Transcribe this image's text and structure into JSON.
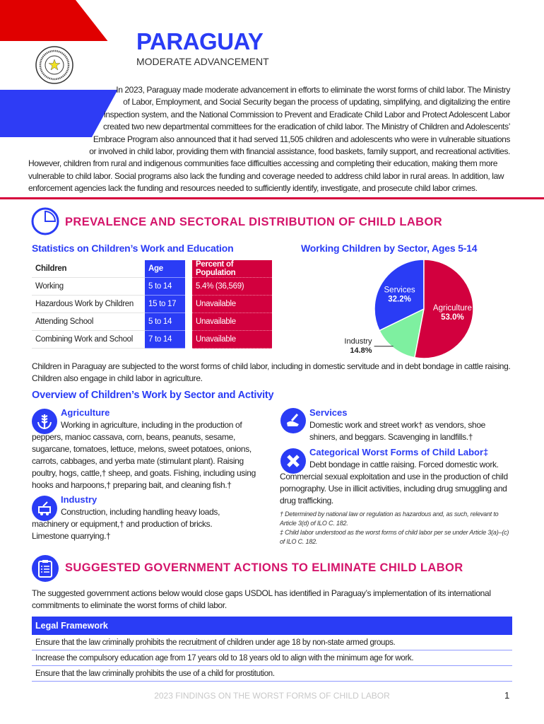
{
  "header": {
    "country": "PARAGUAY",
    "assessment": "MODERATE ADVANCEMENT",
    "flag_colors": {
      "red": "#e00000",
      "white": "#ffffff",
      "blue": "#2e3cf5"
    },
    "seal_icon": "national-seal"
  },
  "intro_lines": [
    "In 2023, Paraguay made moderate advancement in efforts to eliminate the worst forms of child labor. The Ministry",
    "of Labor, Employment, and Social Security began the process of updating, simplifying, and digitalizing the entire",
    "inspection system, and the National Commission to Prevent and Eradicate Child Labor and Protect Adolescent Labor",
    "created two new departmental committees for the eradication of child labor. The Ministry of Children and Adolescents’",
    "Embrace Program also announced that it had served 11,505 children and adolescents who were in vulnerable situations",
    "or involved in child labor, providing them with financial assistance, food baskets, family support, and recreational activities.",
    "However, children from rural and indigenous communities face difficulties accessing and completing their education, making them more",
    "vulnerable to child labor. Social programs also lack the funding and coverage needed to address child labor in rural areas. In addition, law",
    "enforcement agencies lack the funding and resources needed to sufficiently identify, investigate, and prosecute child labor crimes."
  ],
  "prevalence": {
    "heading": "PREVALENCE AND SECTORAL DISTRIBUTION OF CHILD LABOR",
    "icon": "pie-chart-icon",
    "stats_title": "Statistics on Children’s Work and Education",
    "table": {
      "headers": [
        "Children",
        "Age",
        "Percent of Population"
      ],
      "rows": [
        [
          "Working",
          "5 to 14",
          "5.4% (36,569)"
        ],
        [
          "Hazardous Work by Children",
          "15 to 17",
          "Unavailable"
        ],
        [
          "Attending School",
          "5 to 14",
          "Unavailable"
        ],
        [
          "Combining Work and School",
          "7 to 14",
          "Unavailable"
        ]
      ]
    },
    "paragraph": "Children in Paraguay are subjected to the worst forms of child labor, including in domestic servitude and in debt bondage in cattle raising. Children also engage in child labor in agriculture."
  },
  "chart_data": {
    "type": "pie",
    "title": "Working Children by Sector, Ages 5-14",
    "slices": [
      {
        "name": "Services",
        "value": 32.2,
        "label": "32.2%",
        "color": "#2a3cf5"
      },
      {
        "name": "Industry",
        "value": 14.8,
        "label": "14.8%",
        "color": "#7ef0a0"
      },
      {
        "name": "Agriculture",
        "value": 53.0,
        "label": "53.0%",
        "color": "#d2003e"
      }
    ],
    "legend": "none"
  },
  "overview": {
    "heading": "Overview of Children’s Work by Sector and Activity",
    "sectors": [
      {
        "title": "Agriculture",
        "icon": "wheat-icon",
        "text": "Working in agriculture, including in the production of peppers, manioc cassava, corn, beans, peanuts, sesame, sugarcane, tomatoes, lettuce, melons, sweet potatoes, onions, carrots, cabbages, and yerba mate (stimulant plant). Raising poultry, hogs, cattle,† sheep, and goats. Fishing, including using hooks and harpoons,† preparing bait, and cleaning fish.†"
      },
      {
        "title": "Industry",
        "icon": "mine-cart-icon",
        "text": "Construction, including handling heavy loads, machinery or equipment,† and production of bricks. Limestone quarrying.†"
      },
      {
        "title": "Services",
        "icon": "shoe-shine-icon",
        "text": "Domestic work and street work† as vendors, shoe shiners, and beggars. Scavenging in landfills.†"
      },
      {
        "title": "Categorical Worst Forms of Child Labor‡",
        "icon": "x-icon",
        "text": "Debt bondage in cattle raising. Forced domestic work. Commercial sexual exploitation and use in the production of child pornography. Use in illicit activities, including drug smuggling and drug trafficking."
      }
    ],
    "footnotes": [
      "† Determined by national law or regulation as hazardous and, as such, relevant to Article 3(d) of ILO C. 182.",
      "‡ Child labor understood as the worst forms of child labor per se under Article 3(a)–(c) of ILO C. 182."
    ]
  },
  "actions": {
    "heading": "SUGGESTED GOVERNMENT ACTIONS TO ELIMINATE CHILD LABOR",
    "icon": "clipboard-icon",
    "intro": "The suggested government actions below would close gaps USDOL has identified in Paraguay’s implementation of its international commitments to eliminate the worst forms of child labor.",
    "table_header": "Legal Framework",
    "rows": [
      "Ensure that the law criminally prohibits the recruitment of children under age 18 by non-state armed groups.",
      "Increase the compulsory education age from 17 years old to 18 years old to align with the minimum age for work.",
      "Ensure that the law criminally prohibits the use of a child for prostitution."
    ]
  },
  "footer": {
    "text": "2023 FINDINGS ON THE WORST FORMS OF CHILD LABOR",
    "page": "1"
  }
}
